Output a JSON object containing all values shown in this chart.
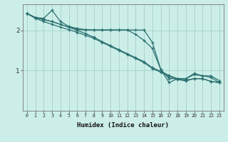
{
  "xlabel": "Humidex (Indice chaleur)",
  "background_color": "#cceee8",
  "grid_color": "#aad4ce",
  "line_color": "#2a7070",
  "xlim": [
    -0.5,
    23.5
  ],
  "ylim": [
    0.0,
    2.65
  ],
  "yticks": [
    1,
    2
  ],
  "xtick_labels": [
    "0",
    "1",
    "2",
    "3",
    "4",
    "5",
    "6",
    "7",
    "8",
    "9",
    "10",
    "11",
    "12",
    "13",
    "14",
    "15",
    "16",
    "17",
    "18",
    "19",
    "20",
    "21",
    "22",
    "23"
  ],
  "lines": [
    {
      "x": [
        0,
        1,
        2,
        3,
        4,
        5,
        6,
        7,
        8,
        9,
        10,
        11,
        12,
        13,
        14,
        15,
        16,
        17,
        18,
        19,
        20,
        21,
        22,
        23
      ],
      "y": [
        2.42,
        2.32,
        2.3,
        2.5,
        2.22,
        2.1,
        2.05,
        2.02,
        2.01,
        2.01,
        2.01,
        2.01,
        2.01,
        1.9,
        1.75,
        1.55,
        1.03,
        0.7,
        0.8,
        0.8,
        0.93,
        0.87,
        0.87,
        0.75
      ]
    },
    {
      "x": [
        0,
        1,
        2,
        3,
        4,
        5,
        6,
        7,
        8,
        9,
        10,
        11,
        12,
        13,
        14,
        15,
        16,
        17,
        18,
        19,
        20,
        21,
        22,
        23
      ],
      "y": [
        2.42,
        2.32,
        2.27,
        2.22,
        2.15,
        2.08,
        2.02,
        2.01,
        2.01,
        2.01,
        2.01,
        2.01,
        2.01,
        2.01,
        2.01,
        1.7,
        1.03,
        0.8,
        0.8,
        0.8,
        0.9,
        0.87,
        0.83,
        0.7
      ]
    },
    {
      "x": [
        0,
        1,
        2,
        3,
        4,
        5,
        6,
        7,
        8,
        9,
        10,
        11,
        12,
        13,
        14,
        15,
        16,
        17,
        18,
        19,
        20,
        21,
        22,
        23
      ],
      "y": [
        2.42,
        2.32,
        2.27,
        2.22,
        2.15,
        2.08,
        2.0,
        1.92,
        1.83,
        1.72,
        1.62,
        1.52,
        1.42,
        1.32,
        1.22,
        1.07,
        0.98,
        0.88,
        0.8,
        0.76,
        0.8,
        0.8,
        0.73,
        0.7
      ]
    },
    {
      "x": [
        0,
        1,
        2,
        3,
        4,
        5,
        6,
        7,
        8,
        9,
        10,
        11,
        12,
        13,
        14,
        15,
        16,
        17,
        18,
        19,
        20,
        21,
        22,
        23
      ],
      "y": [
        2.42,
        2.3,
        2.22,
        2.15,
        2.08,
        2.02,
        1.95,
        1.88,
        1.8,
        1.7,
        1.6,
        1.5,
        1.4,
        1.3,
        1.2,
        1.05,
        0.96,
        0.85,
        0.78,
        0.74,
        0.8,
        0.8,
        0.73,
        0.7
      ]
    }
  ]
}
